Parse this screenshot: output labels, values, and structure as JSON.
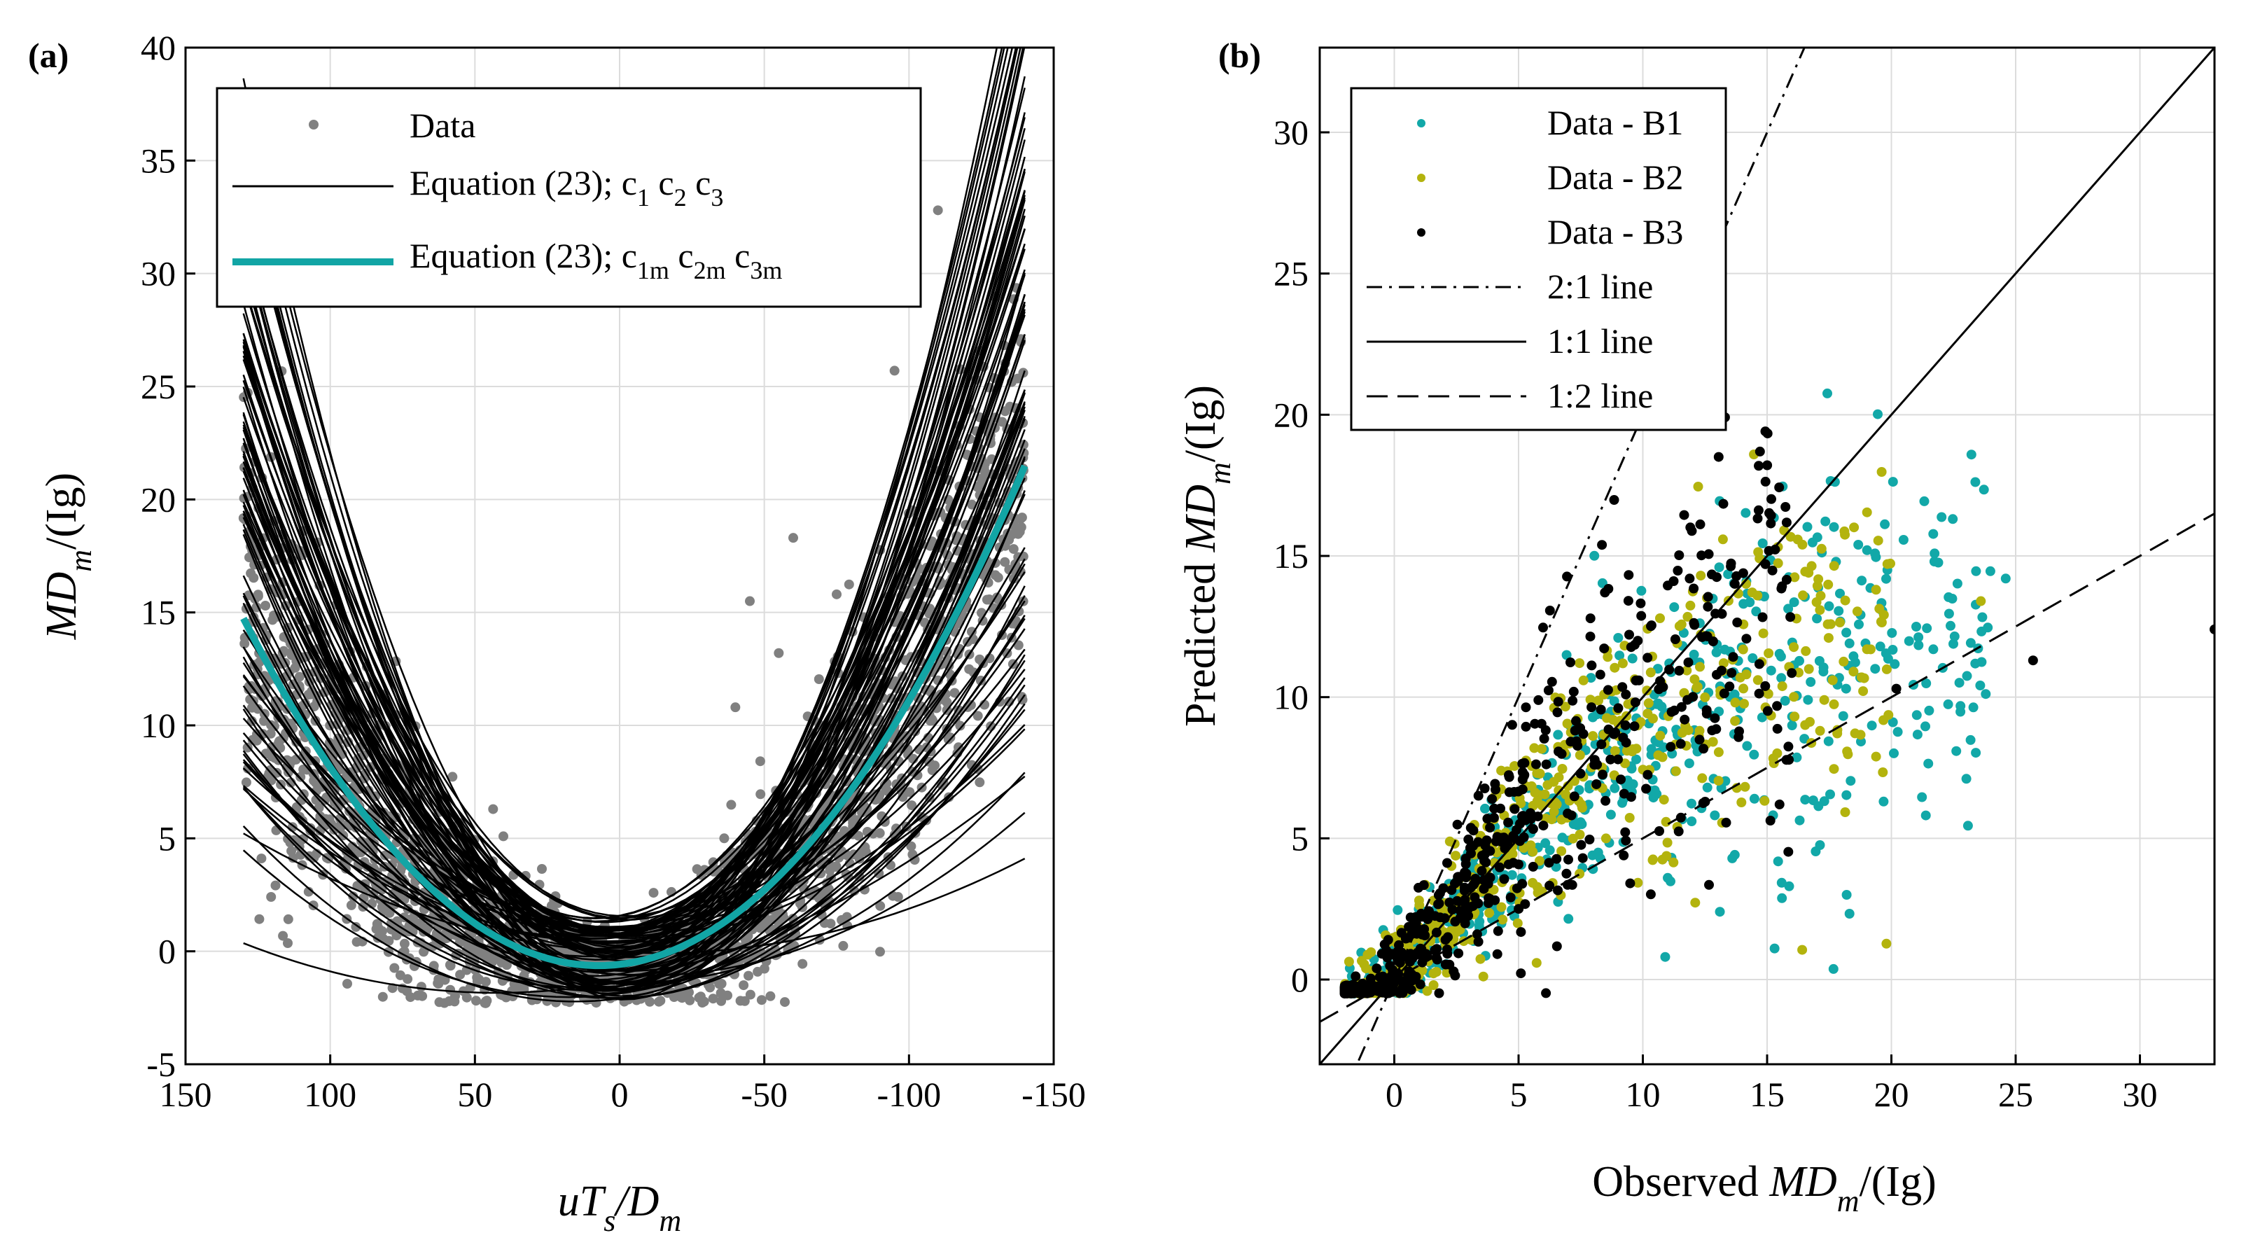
{
  "chart_data": [
    {
      "panel_label": "(a)",
      "type": "scatter",
      "xlabel": {
        "a": "uT",
        "b": "s",
        "c": "/D",
        "d": "m"
      },
      "ylabel": {
        "a": "MD",
        "b": "m",
        "c": "/(Ig)"
      },
      "xlim": [
        150,
        -150
      ],
      "ylim": [
        -5,
        40
      ],
      "xticks": [
        150,
        100,
        50,
        0,
        -50,
        -100,
        -150
      ],
      "xtick_labels": [
        "150",
        "100",
        "50",
        "0",
        "-50",
        "-100",
        "-150"
      ],
      "yticks": [
        -5,
        0,
        5,
        10,
        15,
        20,
        25,
        30,
        35,
        40
      ],
      "ytick_labels": [
        "-5",
        "0",
        "5",
        "10",
        "15",
        "20",
        "25",
        "30",
        "35",
        "40"
      ],
      "grid": true,
      "legend_position": "top-left",
      "legend": [
        {
          "label": "Data",
          "style": "gray markers"
        },
        {
          "label": "Equation (23); c",
          "sub": [
            "1",
            "2",
            "3"
          ],
          "mid": [
            " c",
            " c"
          ],
          "style": "thin black line"
        },
        {
          "label": "Equation (23); c",
          "sub": [
            "1m",
            "2m",
            "3m"
          ],
          "mid": [
            " c",
            " c"
          ],
          "style": "thick teal line"
        }
      ],
      "series": [
        {
          "name": "Data",
          "kind": "scatter",
          "color": "#808080",
          "count_approx": 2500,
          "trend": "MD = 0.00102*x^2 - 0.0148*x - 0.58 with scatter"
        },
        {
          "name": "Equation (23); c1 c2 c3",
          "kind": "line-family",
          "color": "#000000",
          "count_approx": 90,
          "x_range": [
            130,
            -140
          ]
        },
        {
          "name": "Equation (23); c1m c2m c3m",
          "kind": "line",
          "color": "#12a5a5",
          "x_range": [
            130,
            -140
          ],
          "a": 0.00102,
          "b": -0.0148,
          "c": -0.58
        }
      ],
      "outliers": [
        [
          -45,
          15.5
        ],
        [
          -60,
          18.3
        ],
        [
          -110,
          32.8
        ],
        [
          -95,
          25.7
        ],
        [
          -75,
          15.8
        ],
        [
          -40,
          10.8
        ],
        [
          -55,
          13.2
        ],
        [
          -65,
          10.4
        ]
      ]
    },
    {
      "panel_label": "(b)",
      "type": "scatter",
      "xlabel": {
        "a": "Observed  ",
        "b": "MD",
        "c": "m",
        "d": "/(Ig)"
      },
      "ylabel": {
        "a": "Predicted  ",
        "b": "MD",
        "c": "m",
        "d": "/(Ig)"
      },
      "xlim": [
        -3,
        33
      ],
      "ylim": [
        -3,
        33
      ],
      "xticks": [
        0,
        5,
        10,
        15,
        20,
        25,
        30
      ],
      "xtick_labels": [
        "0",
        "5",
        "10",
        "15",
        "20",
        "25",
        "30"
      ],
      "yticks": [
        0,
        5,
        10,
        15,
        20,
        25,
        30
      ],
      "ytick_labels": [
        "0",
        "5",
        "10",
        "15",
        "20",
        "25",
        "30"
      ],
      "grid": true,
      "legend_position": "top-left",
      "legend": [
        {
          "label": "Data - B1",
          "style": "teal dots",
          "color": "#12a8a8"
        },
        {
          "label": "Data - B2",
          "style": "olive dots",
          "color": "#b3b30d"
        },
        {
          "label": "Data - B3",
          "style": "black dots",
          "color": "#000000"
        },
        {
          "label": "2:1 line",
          "style": "dash-dot"
        },
        {
          "label": "1:1 line",
          "style": "solid"
        },
        {
          "label": "1:2 line",
          "style": "dashed"
        }
      ],
      "series": [
        {
          "name": "Data - B1",
          "color": "#12a8a8",
          "count_approx": 700
        },
        {
          "name": "Data - B2",
          "color": "#b3b30d",
          "count_approx": 600
        },
        {
          "name": "Data - B3",
          "color": "#000000",
          "count_approx": 600
        }
      ],
      "reference_lines": [
        {
          "name": "2:1 line",
          "slope": 2
        },
        {
          "name": "1:1 line",
          "slope": 1
        },
        {
          "name": "1:2 line",
          "slope": 0.5
        }
      ],
      "outliers": [
        {
          "series": "Data - B3",
          "points": [
            [
              33,
              12.4
            ],
            [
              25.7,
              11.3
            ],
            [
              20.2,
              10.3
            ],
            [
              15.5,
              6.2
            ]
          ]
        },
        {
          "series": "Data - B1",
          "points": [
            [
              15.3,
              1.1
            ],
            [
              13.1,
              2.4
            ],
            [
              10.9,
              0.8
            ],
            [
              18.2,
              3.0
            ],
            [
              11.0,
              3.6
            ],
            [
              24.6,
              14.2
            ]
          ]
        },
        {
          "series": "Data - B2",
          "points": [
            [
              23.6,
              13.4
            ],
            [
              18.8,
              10.7
            ],
            [
              17.3,
              9.9
            ]
          ]
        }
      ]
    }
  ]
}
